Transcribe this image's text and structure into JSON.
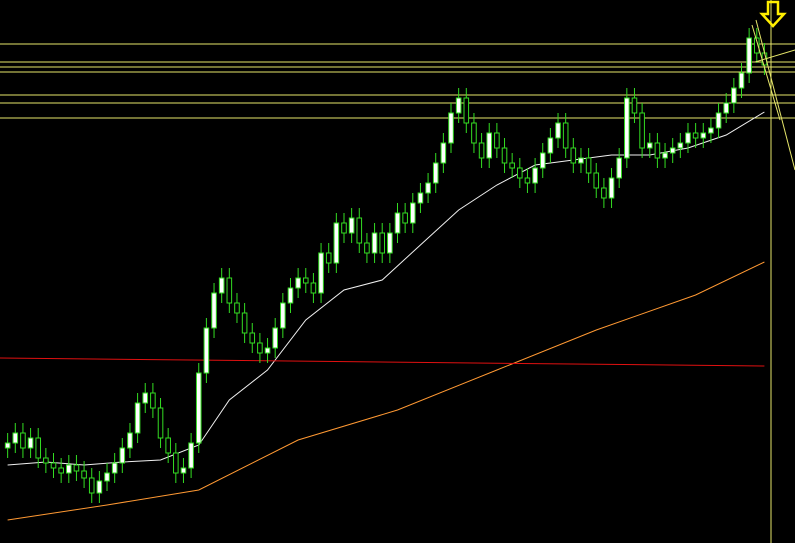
{
  "chart_data": {
    "type": "candlestick",
    "xlim": [
      -1,
      103
    ],
    "ylim": [
      0,
      543
    ],
    "candle_color": "#33dd22",
    "up_fill": "#ffffff",
    "down_fill": "#000000",
    "open": [
      95,
      100,
      110,
      95,
      105,
      85,
      80,
      75,
      70,
      78,
      72,
      65,
      50,
      62,
      70,
      80,
      95,
      110,
      140,
      150,
      135,
      105,
      90,
      70,
      75,
      100,
      170,
      215,
      250,
      265,
      240,
      230,
      210,
      200,
      190,
      195,
      215,
      240,
      255,
      265,
      260,
      250,
      290,
      280,
      320,
      310,
      325,
      300,
      290,
      310,
      290,
      310,
      330,
      320,
      340,
      350,
      360,
      380,
      400,
      430,
      445,
      420,
      400,
      385,
      410,
      395,
      380,
      375,
      365,
      360,
      375,
      390,
      405,
      420,
      395,
      380,
      385,
      370,
      355,
      345,
      365,
      385,
      445,
      430,
      395,
      400,
      385,
      390,
      395,
      400,
      410,
      405,
      410,
      415,
      430,
      440,
      455,
      470,
      505,
      490
    ],
    "high": [
      110,
      120,
      120,
      115,
      115,
      95,
      90,
      85,
      88,
      88,
      82,
      75,
      72,
      80,
      90,
      105,
      120,
      150,
      160,
      160,
      145,
      115,
      100,
      85,
      110,
      180,
      225,
      260,
      275,
      275,
      250,
      240,
      220,
      210,
      205,
      225,
      250,
      265,
      275,
      275,
      270,
      300,
      300,
      330,
      330,
      335,
      335,
      310,
      320,
      320,
      320,
      340,
      340,
      350,
      360,
      370,
      390,
      410,
      440,
      455,
      455,
      430,
      410,
      420,
      420,
      405,
      390,
      385,
      375,
      385,
      400,
      415,
      430,
      430,
      405,
      395,
      395,
      380,
      365,
      375,
      395,
      455,
      455,
      440,
      410,
      410,
      400,
      405,
      410,
      420,
      420,
      420,
      425,
      440,
      450,
      465,
      480,
      515,
      515,
      500
    ],
    "low": [
      85,
      90,
      85,
      85,
      75,
      70,
      65,
      60,
      60,
      62,
      55,
      40,
      40,
      52,
      60,
      70,
      85,
      100,
      130,
      125,
      95,
      80,
      60,
      60,
      65,
      90,
      160,
      205,
      240,
      230,
      220,
      200,
      190,
      180,
      180,
      185,
      205,
      230,
      245,
      250,
      240,
      240,
      270,
      270,
      300,
      300,
      290,
      280,
      280,
      280,
      280,
      300,
      310,
      310,
      330,
      340,
      350,
      370,
      390,
      420,
      410,
      390,
      375,
      375,
      385,
      370,
      365,
      355,
      350,
      350,
      365,
      380,
      395,
      385,
      370,
      370,
      360,
      345,
      335,
      335,
      355,
      375,
      420,
      385,
      385,
      375,
      375,
      380,
      385,
      390,
      395,
      395,
      400,
      405,
      420,
      430,
      445,
      460,
      480,
      468
    ],
    "close": [
      100,
      110,
      95,
      105,
      85,
      80,
      75,
      70,
      78,
      72,
      65,
      50,
      62,
      70,
      80,
      95,
      110,
      140,
      150,
      135,
      105,
      90,
      70,
      75,
      100,
      170,
      215,
      250,
      265,
      240,
      230,
      210,
      200,
      190,
      195,
      215,
      240,
      255,
      265,
      260,
      250,
      290,
      280,
      320,
      310,
      325,
      300,
      290,
      310,
      290,
      310,
      330,
      320,
      340,
      350,
      360,
      380,
      400,
      430,
      445,
      420,
      400,
      385,
      410,
      395,
      380,
      375,
      365,
      360,
      375,
      390,
      405,
      420,
      395,
      380,
      385,
      370,
      355,
      345,
      365,
      385,
      445,
      430,
      395,
      400,
      385,
      390,
      395,
      400,
      410,
      405,
      410,
      415,
      430,
      440,
      455,
      470,
      505,
      490,
      478
    ],
    "lines": [
      {
        "color": "#f0f0f0",
        "x": [
          0,
          5,
          10,
          15,
          20,
          25,
          29,
          34,
          39,
          44,
          49,
          54,
          59,
          64,
          69,
          74,
          79,
          84,
          89,
          94,
          99
        ],
        "values": [
          78,
          81,
          78,
          81,
          83,
          98,
          143,
          173,
          223,
          253,
          263,
          298,
          333,
          358,
          378,
          383,
          388,
          388,
          395,
          408,
          431
        ]
      },
      {
        "color": "#ff9933",
        "x": [
          0,
          13,
          25,
          38,
          51,
          64,
          77,
          90,
          99
        ],
        "values": [
          23,
          38,
          53,
          103,
          133,
          173,
          213,
          248,
          281
        ]
      },
      {
        "color": "#e01010",
        "x": [
          -1,
          99
        ],
        "values": [
          185,
          177
        ]
      }
    ],
    "levels": [
      499,
      481,
      476,
      471,
      448,
      440,
      425
    ],
    "level_color": "#e6e66a"
  }
}
